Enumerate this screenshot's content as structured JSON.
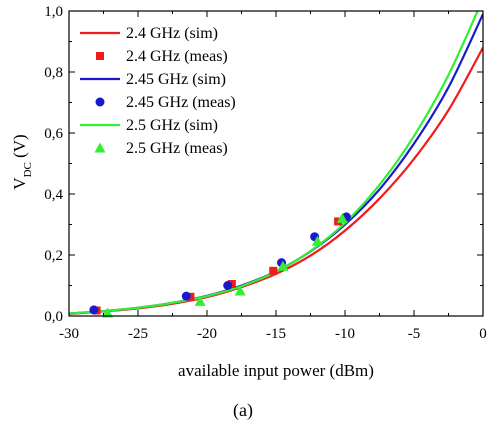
{
  "caption": "(a)",
  "chart_data": {
    "type": "line",
    "xlabel": "available input power (dBm)",
    "ylabel_main": "V",
    "ylabel_sub": "DC",
    "ylabel_unit": " (V)",
    "xlim": [
      -30,
      0
    ],
    "ylim": [
      0,
      1.0
    ],
    "grid": false,
    "legend_position": "top-left",
    "x_ticks": [
      -30,
      -25,
      -20,
      -15,
      -10,
      -5,
      0
    ],
    "x_tick_labels": [
      "-30",
      "-25",
      "-20",
      "-15",
      "-10",
      "-5",
      "0"
    ],
    "y_ticks": [
      0,
      0.2,
      0.4,
      0.6,
      0.8,
      1.0
    ],
    "y_tick_labels": [
      "0,0",
      "0,2",
      "0,4",
      "0,6",
      "0,8",
      "1,0"
    ],
    "series": [
      {
        "name": "2.4 GHz (sim)",
        "kind": "line",
        "color": "#ee1c1c",
        "x": [
          -30,
          -27.5,
          -25,
          -22.5,
          -20,
          -17.5,
          -15,
          -12.5,
          -10,
          -7.5,
          -5,
          -2.5,
          0
        ],
        "y": [
          0.007,
          0.015,
          0.025,
          0.04,
          0.062,
          0.095,
          0.138,
          0.198,
          0.28,
          0.385,
          0.515,
          0.675,
          0.88
        ]
      },
      {
        "name": "2.4 GHz (meas)",
        "kind": "square",
        "color": "#ee1c1c",
        "x": [
          -28,
          -21.2,
          -18.2,
          -15.2,
          -10.5
        ],
        "y": [
          0.018,
          0.063,
          0.105,
          0.148,
          0.31
        ]
      },
      {
        "name": "2.45 GHz (sim)",
        "kind": "line",
        "color": "#1a1acc",
        "x": [
          -30,
          -27.5,
          -25,
          -22.5,
          -20,
          -17.5,
          -15,
          -12.5,
          -10,
          -7.5,
          -5,
          -2.5,
          0
        ],
        "y": [
          0.008,
          0.016,
          0.027,
          0.043,
          0.066,
          0.1,
          0.146,
          0.212,
          0.3,
          0.415,
          0.565,
          0.75,
          0.99
        ]
      },
      {
        "name": "2.45 GHz (meas)",
        "kind": "circle",
        "color": "#1a1acc",
        "x": [
          -28.2,
          -21.5,
          -18.5,
          -14.6,
          -12.2,
          -9.9
        ],
        "y": [
          0.02,
          0.065,
          0.1,
          0.175,
          0.26,
          0.325
        ]
      },
      {
        "name": "2.5 GHz (sim)",
        "kind": "line",
        "color": "#33ee33",
        "x": [
          -30,
          -27.5,
          -25,
          -22.5,
          -20,
          -17.5,
          -15,
          -12.5,
          -10,
          -7.5,
          -5,
          -2.5,
          0
        ],
        "y": [
          0.008,
          0.016,
          0.027,
          0.043,
          0.065,
          0.098,
          0.145,
          0.213,
          0.305,
          0.43,
          0.59,
          0.79,
          1.04
        ]
      },
      {
        "name": "2.5 GHz (meas)",
        "kind": "triangle",
        "color": "#33ee33",
        "x": [
          -27.2,
          -20.5,
          -17.6,
          -14.5,
          -12.0,
          -10.2
        ],
        "y": [
          0.01,
          0.048,
          0.082,
          0.163,
          0.245,
          0.32
        ]
      }
    ]
  }
}
